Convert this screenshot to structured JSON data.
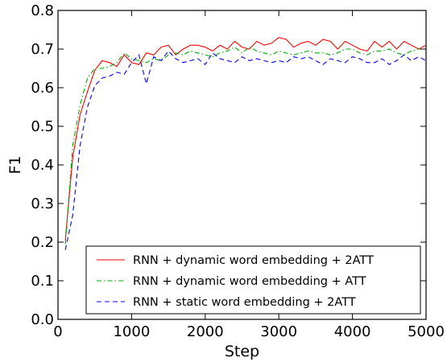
{
  "chart_data": {
    "type": "line",
    "title": "",
    "xlabel": "Step",
    "ylabel": "F1",
    "xlim": [
      0,
      5000
    ],
    "ylim": [
      0.0,
      0.8
    ],
    "xticks": [
      0,
      1000,
      2000,
      3000,
      4000,
      5000
    ],
    "yticks": [
      0.0,
      0.1,
      0.2,
      0.3,
      0.4,
      0.5,
      0.6,
      0.7,
      0.8
    ],
    "xtick_labels": [
      "0",
      "1000",
      "2000",
      "3000",
      "4000",
      "5000"
    ],
    "ytick_labels": [
      "0.0",
      "0.1",
      "0.2",
      "0.3",
      "0.4",
      "0.5",
      "0.6",
      "0.7",
      "0.8"
    ],
    "grid": false,
    "legend_position": "lower-right",
    "x": [
      100,
      200,
      300,
      400,
      500,
      600,
      700,
      800,
      900,
      1000,
      1100,
      1200,
      1300,
      1400,
      1500,
      1600,
      1700,
      1800,
      1900,
      2000,
      2100,
      2200,
      2300,
      2400,
      2500,
      2600,
      2700,
      2800,
      2900,
      3000,
      3100,
      3200,
      3300,
      3400,
      3500,
      3600,
      3700,
      3800,
      3900,
      4000,
      4100,
      4200,
      4300,
      4400,
      4500,
      4600,
      4700,
      4800,
      4900,
      5000
    ],
    "series": [
      {
        "name": "RNN + dynamic word embedding + 2ATT",
        "color": "#ff0000",
        "style": "solid",
        "values": [
          0.205,
          0.42,
          0.53,
          0.59,
          0.645,
          0.67,
          0.665,
          0.655,
          0.685,
          0.665,
          0.66,
          0.69,
          0.685,
          0.705,
          0.71,
          0.685,
          0.7,
          0.71,
          0.71,
          0.705,
          0.695,
          0.71,
          0.7,
          0.72,
          0.705,
          0.7,
          0.72,
          0.71,
          0.715,
          0.73,
          0.725,
          0.705,
          0.715,
          0.72,
          0.71,
          0.725,
          0.72,
          0.7,
          0.72,
          0.71,
          0.7,
          0.695,
          0.72,
          0.705,
          0.72,
          0.7,
          0.72,
          0.71,
          0.7,
          0.71
        ]
      },
      {
        "name": "RNN + dynamic word embedding + ATT",
        "color": "#00aa00",
        "style": "dashdot",
        "values": [
          0.195,
          0.45,
          0.555,
          0.625,
          0.65,
          0.65,
          0.655,
          0.665,
          0.69,
          0.675,
          0.67,
          0.665,
          0.675,
          0.67,
          0.685,
          0.69,
          0.685,
          0.695,
          0.69,
          0.685,
          0.68,
          0.69,
          0.695,
          0.705,
          0.69,
          0.705,
          0.695,
          0.69,
          0.685,
          0.695,
          0.69,
          0.685,
          0.69,
          0.695,
          0.69,
          0.69,
          0.685,
          0.69,
          0.7,
          0.7,
          0.69,
          0.685,
          0.695,
          0.695,
          0.7,
          0.69,
          0.685,
          0.695,
          0.7,
          0.7
        ]
      },
      {
        "name": "RNN + static word embedding + 2ATT",
        "color": "#0000ff",
        "style": "dashed",
        "values": [
          0.18,
          0.27,
          0.45,
          0.55,
          0.605,
          0.625,
          0.63,
          0.64,
          0.635,
          0.665,
          0.685,
          0.61,
          0.68,
          0.67,
          0.695,
          0.675,
          0.665,
          0.67,
          0.675,
          0.66,
          0.69,
          0.675,
          0.67,
          0.665,
          0.68,
          0.67,
          0.675,
          0.67,
          0.665,
          0.67,
          0.665,
          0.68,
          0.675,
          0.68,
          0.67,
          0.66,
          0.675,
          0.67,
          0.665,
          0.68,
          0.675,
          0.665,
          0.665,
          0.675,
          0.66,
          0.67,
          0.685,
          0.67,
          0.68,
          0.67
        ]
      }
    ]
  }
}
